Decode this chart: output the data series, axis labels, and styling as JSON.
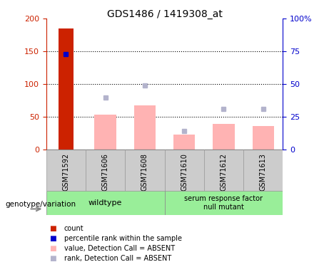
{
  "title": "GDS1486 / 1419308_at",
  "samples": [
    "GSM71592",
    "GSM71606",
    "GSM71608",
    "GSM71610",
    "GSM71612",
    "GSM71613"
  ],
  "count_values": [
    185,
    0,
    0,
    0,
    0,
    0
  ],
  "percentile_rank_pct": [
    73,
    0,
    0,
    0,
    0,
    0
  ],
  "absent_values": [
    0,
    53,
    68,
    23,
    39,
    36
  ],
  "absent_rank_pct": [
    0,
    40,
    49,
    14,
    31,
    31
  ],
  "left_ylim": [
    0,
    200
  ],
  "right_ylim": [
    0,
    100
  ],
  "left_yticks": [
    0,
    50,
    100,
    150,
    200
  ],
  "right_yticks": [
    0,
    25,
    50,
    75,
    100
  ],
  "right_yticklabels": [
    "0",
    "25",
    "50",
    "75",
    "100%"
  ],
  "color_count": "#cc2200",
  "color_percentile": "#0000cc",
  "color_absent_value": "#ffb3b3",
  "color_absent_rank": "#b3b3cc",
  "group1_label": "wildtype",
  "group2_label": "serum response factor\nnull mutant",
  "group1_indices": [
    0,
    1,
    2
  ],
  "group2_indices": [
    3,
    4,
    5
  ],
  "group_bg_color": "#99ee99",
  "legend_items": [
    {
      "color": "#cc2200",
      "label": "count"
    },
    {
      "color": "#0000cc",
      "label": "percentile rank within the sample"
    },
    {
      "color": "#ffb3b3",
      "label": "value, Detection Call = ABSENT"
    },
    {
      "color": "#b3b3cc",
      "label": "rank, Detection Call = ABSENT"
    }
  ]
}
